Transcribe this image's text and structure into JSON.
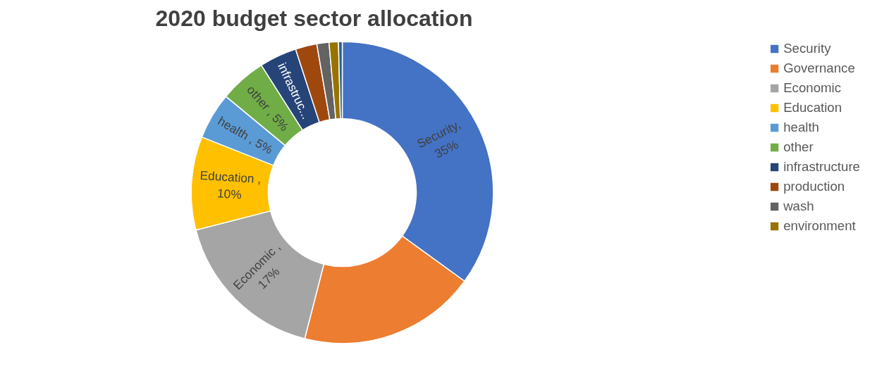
{
  "chart_data": {
    "type": "donut",
    "title": "2020 budget sector allocation",
    "categories": [
      "Security",
      "Governance",
      "Economic",
      "Education",
      "health",
      "other",
      "infrastructure",
      "production",
      "wash",
      "environment",
      null
    ],
    "values": [
      35,
      19,
      17,
      10,
      5,
      5,
      4,
      2.3,
      1.3,
      1,
      0.4
    ],
    "colors": [
      "#4472c4",
      "#ed7d31",
      "#a5a5a5",
      "#ffc000",
      "#5b9bd5",
      "#70ad47",
      "#264478",
      "#9e480e",
      "#636363",
      "#997300",
      "#255e91"
    ],
    "value_labels": [
      "Security,\n35%",
      null,
      "Economic ,\n17%",
      "Education ,\n10%",
      "health , 5%",
      "other , 5%",
      "infrastruc...",
      null,
      null,
      null,
      null
    ],
    "legend": "right"
  }
}
